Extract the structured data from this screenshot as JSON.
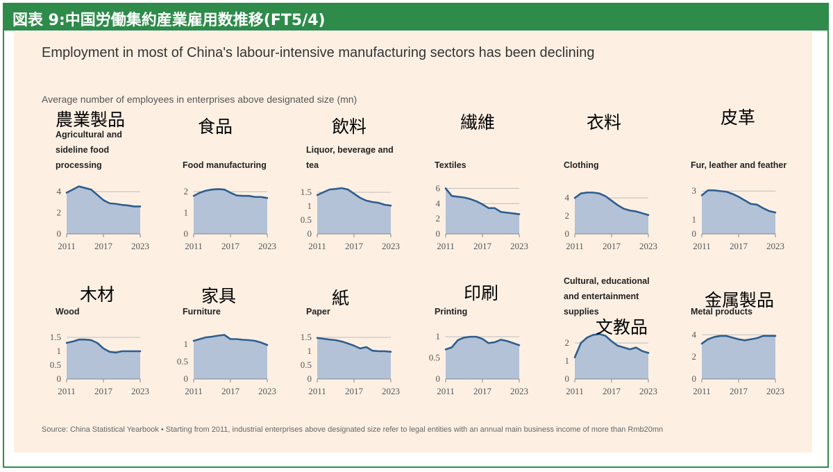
{
  "header": {
    "title": "図表 9:中国労働集約産業雇用数推移(FT5/4)"
  },
  "figure": {
    "title": "Employment in most of China's labour-intensive manufacturing sectors has been declining",
    "subtitle": "Average number of employees in enterprises above designated size (mn)",
    "source": "Source: China Statistical Yearbook • Starting from 2011, industrial enterprises above designated size refer to legal entities with an annual main business income of more than Rmb20mn"
  },
  "jp_labels": [
    "農業製品",
    "食品",
    "飲料",
    "繊維",
    "衣料",
    "皮革",
    "木材",
    "家具",
    "紙",
    "印刷",
    "文教品",
    "金属製品"
  ],
  "colors": {
    "header_bg": "#2e8b4a",
    "panel_bg": "#fdf0e3",
    "line": "#2e5d8f",
    "area": "#b3c2d6",
    "grid": "#bbbbbb"
  },
  "chart_data": [
    {
      "type": "area",
      "title": "Agricultural and sideline food processing",
      "x": [
        2011,
        2012,
        2013,
        2014,
        2015,
        2016,
        2017,
        2018,
        2019,
        2020,
        2021,
        2022,
        2023
      ],
      "values": [
        3.9,
        4.2,
        4.5,
        4.35,
        4.2,
        3.7,
        3.2,
        2.9,
        2.85,
        2.75,
        2.7,
        2.6,
        2.6
      ],
      "ylim": [
        0,
        4.6
      ],
      "yticks": [
        0,
        2,
        4
      ],
      "xticks": [
        2011,
        2017,
        2023
      ]
    },
    {
      "type": "area",
      "title": "Food manufacturing",
      "x": [
        2011,
        2012,
        2013,
        2014,
        2015,
        2016,
        2017,
        2018,
        2019,
        2020,
        2021,
        2022,
        2023
      ],
      "values": [
        1.8,
        1.95,
        2.05,
        2.1,
        2.12,
        2.1,
        1.95,
        1.82,
        1.8,
        1.8,
        1.75,
        1.75,
        1.7
      ],
      "ylim": [
        0,
        2.3
      ],
      "yticks": [
        0,
        1,
        2
      ],
      "xticks": [
        2011,
        2017,
        2023
      ]
    },
    {
      "type": "area",
      "title": "Liquor, beverage and tea",
      "x": [
        2011,
        2012,
        2013,
        2014,
        2015,
        2016,
        2017,
        2018,
        2019,
        2020,
        2021,
        2022,
        2023
      ],
      "values": [
        1.4,
        1.5,
        1.6,
        1.62,
        1.65,
        1.6,
        1.45,
        1.3,
        1.2,
        1.15,
        1.12,
        1.05,
        1.02
      ],
      "ylim": [
        0,
        1.75
      ],
      "yticks": [
        0,
        0.5,
        1,
        1.5
      ],
      "xticks": [
        2011,
        2017,
        2023
      ]
    },
    {
      "type": "area",
      "title": "Textiles",
      "x": [
        2011,
        2012,
        2013,
        2014,
        2015,
        2016,
        2017,
        2018,
        2019,
        2020,
        2021,
        2022,
        2023
      ],
      "values": [
        6,
        5,
        4.9,
        4.8,
        4.6,
        4.3,
        3.9,
        3.4,
        3.4,
        2.9,
        2.8,
        2.7,
        2.6
      ],
      "ylim": [
        0,
        6.4
      ],
      "yticks": [
        0,
        2,
        4,
        6
      ],
      "xticks": [
        2011,
        2017,
        2023
      ]
    },
    {
      "type": "area",
      "title": "Clothing",
      "x": [
        2011,
        2012,
        2013,
        2014,
        2015,
        2016,
        2017,
        2018,
        2019,
        2020,
        2021,
        2022,
        2023
      ],
      "values": [
        4,
        4.5,
        4.6,
        4.6,
        4.5,
        4.2,
        3.7,
        3.2,
        2.8,
        2.6,
        2.5,
        2.3,
        2.1
      ],
      "ylim": [
        0,
        5.4
      ],
      "yticks": [
        0,
        2,
        4
      ],
      "xticks": [
        2011,
        2017,
        2023
      ]
    },
    {
      "type": "area",
      "title": "Fur, leather and feather",
      "x": [
        2011,
        2012,
        2013,
        2014,
        2015,
        2016,
        2017,
        2018,
        2019,
        2020,
        2021,
        2022,
        2023
      ],
      "values": [
        2.7,
        3.05,
        3.05,
        3.0,
        2.95,
        2.8,
        2.6,
        2.35,
        2.1,
        2.05,
        1.8,
        1.6,
        1.5
      ],
      "ylim": [
        0,
        3.4
      ],
      "yticks": [
        0,
        1,
        3
      ],
      "xticks": [
        2011,
        2017,
        2023
      ]
    },
    {
      "type": "area",
      "title": "Wood",
      "x": [
        2011,
        2012,
        2013,
        2014,
        2015,
        2016,
        2017,
        2018,
        2019,
        2020,
        2021,
        2022,
        2023
      ],
      "values": [
        1.3,
        1.35,
        1.42,
        1.42,
        1.4,
        1.3,
        1.1,
        0.98,
        0.95,
        1.0,
        1.0,
        1.0,
        1.0
      ],
      "ylim": [
        0,
        1.75
      ],
      "yticks": [
        0,
        0.5,
        1,
        1.5
      ],
      "xticks": [
        2011,
        2017,
        2023
      ]
    },
    {
      "type": "area",
      "title": "Furniture",
      "x": [
        2011,
        2012,
        2013,
        2014,
        2015,
        2016,
        2017,
        2018,
        2019,
        2020,
        2021,
        2022,
        2023
      ],
      "values": [
        1.1,
        1.15,
        1.2,
        1.22,
        1.25,
        1.27,
        1.15,
        1.15,
        1.13,
        1.12,
        1.1,
        1.05,
        0.98
      ],
      "ylim": [
        0,
        1.4
      ],
      "yticks": [
        0,
        0.5,
        1
      ],
      "xticks": [
        2011,
        2017,
        2023
      ]
    },
    {
      "type": "area",
      "title": "Paper",
      "x": [
        2011,
        2012,
        2013,
        2014,
        2015,
        2016,
        2017,
        2018,
        2019,
        2020,
        2021,
        2022,
        2023
      ],
      "values": [
        1.48,
        1.45,
        1.42,
        1.4,
        1.35,
        1.28,
        1.2,
        1.1,
        1.15,
        1.02,
        1.0,
        1.0,
        0.98
      ],
      "ylim": [
        0,
        1.75
      ],
      "yticks": [
        0,
        0.5,
        1,
        1.5
      ],
      "xticks": [
        2011,
        2017,
        2023
      ]
    },
    {
      "type": "area",
      "title": "Printing",
      "x": [
        2011,
        2012,
        2013,
        2014,
        2015,
        2016,
        2017,
        2018,
        2019,
        2020,
        2021,
        2022,
        2023
      ],
      "values": [
        0.7,
        0.75,
        0.92,
        0.98,
        1.0,
        1.0,
        0.95,
        0.85,
        0.87,
        0.93,
        0.9,
        0.85,
        0.8
      ],
      "ylim": [
        0,
        1.15
      ],
      "yticks": [
        0,
        0.5,
        1
      ],
      "xticks": [
        2011,
        2017,
        2023
      ]
    },
    {
      "type": "area",
      "title": "Cultural, educational and entertainment supplies",
      "x": [
        2011,
        2012,
        2013,
        2014,
        2015,
        2016,
        2017,
        2018,
        2019,
        2020,
        2021,
        2022,
        2023
      ],
      "values": [
        1.2,
        2.0,
        2.3,
        2.45,
        2.5,
        2.4,
        2.1,
        1.85,
        1.75,
        1.65,
        1.75,
        1.55,
        1.45
      ],
      "ylim": [
        0,
        2.7
      ],
      "yticks": [
        0,
        1,
        2
      ],
      "xticks": [
        2011,
        2017,
        2023
      ]
    },
    {
      "type": "area",
      "title": "Metal products",
      "x": [
        2011,
        2012,
        2013,
        2014,
        2015,
        2016,
        2017,
        2018,
        2019,
        2020,
        2021,
        2022,
        2023
      ],
      "values": [
        3.2,
        3.6,
        3.8,
        3.9,
        3.9,
        3.75,
        3.6,
        3.5,
        3.6,
        3.7,
        3.9,
        3.9,
        3.9
      ],
      "ylim": [
        0,
        4.4
      ],
      "yticks": [
        0,
        2,
        4
      ],
      "xticks": [
        2011,
        2017,
        2023
      ]
    }
  ]
}
